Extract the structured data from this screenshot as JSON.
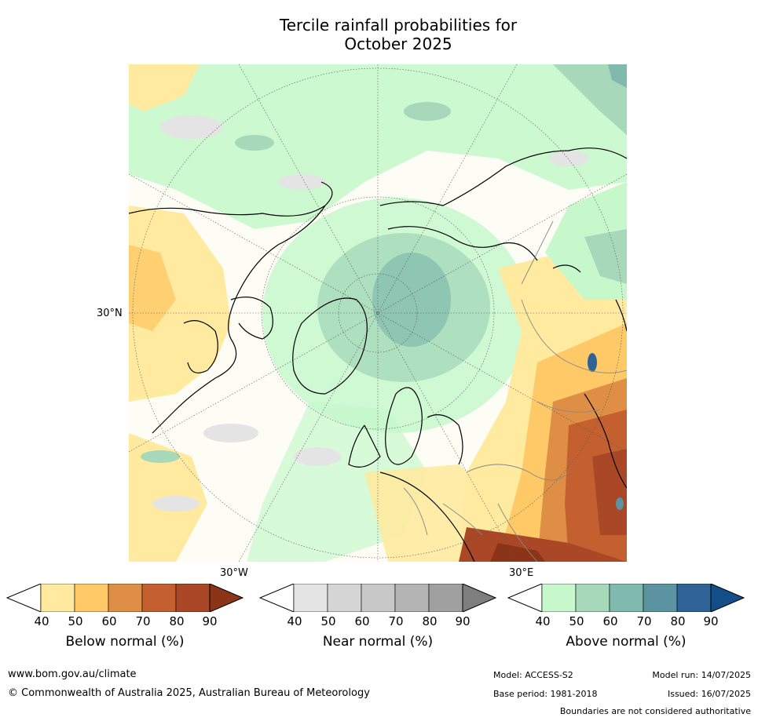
{
  "title_line1": "Tercile rainfall probabilities for",
  "title_line2": "October 2025",
  "map": {
    "lat_label": "30°N",
    "lon_west_label": "30°W",
    "lon_east_label": "30°E"
  },
  "colorbars": {
    "below": {
      "label": "Below normal (%)",
      "ticks": [
        "40",
        "50",
        "60",
        "70",
        "80",
        "90"
      ],
      "colors": [
        "#ffffff",
        "#ffeaa0",
        "#fec966",
        "#de8f45",
        "#c4602f",
        "#a94726",
        "#8b3417"
      ]
    },
    "near": {
      "label": "Near normal (%)",
      "ticks": [
        "40",
        "50",
        "60",
        "70",
        "80",
        "90"
      ],
      "colors": [
        "#ffffff",
        "#e4e4e4",
        "#d5d5d5",
        "#c8c8c8",
        "#b4b4b4",
        "#a0a0a0",
        "#7e7e7e"
      ]
    },
    "above": {
      "label": "Above normal (%)",
      "ticks": [
        "40",
        "50",
        "60",
        "70",
        "80",
        "90"
      ],
      "colors": [
        "#ffffff",
        "#c6f8cc",
        "#a6d8b9",
        "#80b9ae",
        "#5b94a0",
        "#2f6296",
        "#144e88"
      ]
    }
  },
  "footer": {
    "url": "www.bom.gov.au/climate",
    "copyright": "© Commonwealth of Australia 2025, Australian Bureau of Meteorology",
    "model": "Model: ACCESS-S2",
    "base_period": "Base period: 1981-2018",
    "model_run": "Model run: 14/07/2025",
    "issued": "Issued: 16/07/2025",
    "boundaries": "Boundaries are not considered authoritative"
  }
}
